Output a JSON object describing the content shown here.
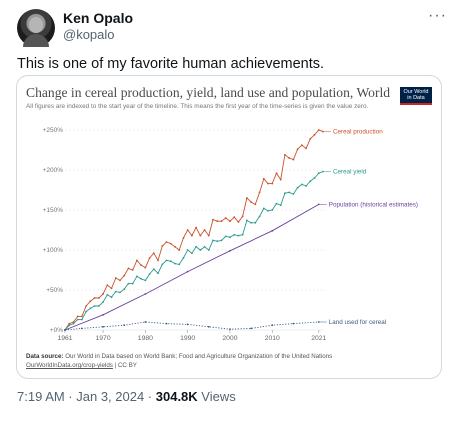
{
  "author": {
    "name": "Ken Opalo",
    "handle": "@kopalo"
  },
  "tweet": {
    "text": "This is one of my favorite human achievements.",
    "more_glyph": "···"
  },
  "chart": {
    "title": "Change in cereal production, yield, land use and population, World",
    "subtitle": "All figures are indexed to the start year of the timeline. This means the first year of the time-series is given the value zero.",
    "logo": {
      "line1": "Our World",
      "line2": "in Data"
    },
    "data_source_label": "Data source:",
    "data_source_text": "Our World in Data based on World Bank; Food and Agriculture Organization of the United Nations",
    "link_text": "OurWorldInData.org/crop-yields",
    "license_text": "| CC BY"
  },
  "chart_data": {
    "type": "line",
    "title": "Change in cereal production, yield, land use and population, World",
    "x_ticks": [
      "1961",
      "1970",
      "1980",
      "1990",
      "2000",
      "2010",
      "2021"
    ],
    "y_ticks": [
      "+0%",
      "+50%",
      "+100%",
      "+150%",
      "+200%",
      "+250%"
    ],
    "xlim": [
      1961,
      2022
    ],
    "ylim": [
      0,
      250
    ],
    "colors": {
      "production": "#c9522b",
      "yield": "#2e9a8f",
      "population": "#6b3fa0",
      "land": "#3c5a80"
    },
    "series": [
      {
        "name": "Cereal production",
        "key": "production",
        "x": [
          1961,
          1962,
          1963,
          1964,
          1965,
          1966,
          1967,
          1968,
          1969,
          1970,
          1971,
          1972,
          1973,
          1974,
          1975,
          1976,
          1977,
          1978,
          1979,
          1980,
          1981,
          1982,
          1983,
          1984,
          1985,
          1986,
          1987,
          1988,
          1989,
          1990,
          1991,
          1992,
          1993,
          1994,
          1995,
          1996,
          1997,
          1998,
          1999,
          2000,
          2001,
          2002,
          2003,
          2004,
          2005,
          2006,
          2007,
          2008,
          2009,
          2010,
          2011,
          2012,
          2013,
          2014,
          2015,
          2016,
          2017,
          2018,
          2019,
          2020,
          2021,
          2022
        ],
        "y": [
          0,
          8,
          10,
          17,
          17,
          30,
          36,
          40,
          40,
          45,
          56,
          52,
          65,
          62,
          68,
          77,
          75,
          87,
          81,
          78,
          90,
          96,
          87,
          105,
          110,
          108,
          104,
          100,
          115,
          125,
          118,
          128,
          118,
          125,
          118,
          138,
          136,
          136,
          140,
          136,
          141,
          135,
          142,
          165,
          160,
          157,
          172,
          189,
          183,
          183,
          196,
          188,
          219,
          215,
          213,
          226,
          231,
          227,
          239,
          244,
          250,
          248
        ]
      },
      {
        "name": "Cereal yield",
        "key": "yield",
        "x": [
          1961,
          1962,
          1963,
          1964,
          1965,
          1966,
          1967,
          1968,
          1969,
          1970,
          1971,
          1972,
          1973,
          1974,
          1975,
          1976,
          1977,
          1978,
          1979,
          1980,
          1981,
          1982,
          1983,
          1984,
          1985,
          1986,
          1987,
          1988,
          1989,
          1990,
          1991,
          1992,
          1993,
          1994,
          1995,
          1996,
          1997,
          1998,
          1999,
          2000,
          2001,
          2002,
          2003,
          2004,
          2005,
          2006,
          2007,
          2008,
          2009,
          2010,
          2011,
          2012,
          2013,
          2014,
          2015,
          2016,
          2017,
          2018,
          2019,
          2020,
          2021,
          2022
        ],
        "y": [
          0,
          6,
          8,
          13,
          13,
          23,
          27,
          30,
          30,
          35,
          44,
          41,
          48,
          47,
          51,
          58,
          58,
          67,
          64,
          62,
          70,
          76,
          71,
          82,
          87,
          86,
          83,
          82,
          90,
          100,
          96,
          104,
          100,
          104,
          100,
          112,
          111,
          112,
          117,
          116,
          119,
          118,
          119,
          137,
          134,
          134,
          142,
          152,
          149,
          150,
          158,
          156,
          171,
          172,
          170,
          178,
          182,
          180,
          186,
          190,
          196,
          198
        ]
      },
      {
        "name": "Population (historical estimates)",
        "key": "population",
        "x": [
          1961,
          1970,
          1980,
          1990,
          2000,
          2010,
          2021
        ],
        "y": [
          0,
          19,
          45,
          73,
          99,
          124,
          157
        ]
      },
      {
        "name": "Land used for cereal",
        "key": "land",
        "x": [
          1961,
          1965,
          1970,
          1975,
          1980,
          1985,
          1990,
          1995,
          2000,
          2005,
          2010,
          2015,
          2021
        ],
        "y": [
          0,
          2,
          4,
          6,
          10,
          8,
          7,
          4,
          1,
          2,
          6,
          8,
          10
        ]
      }
    ]
  },
  "meta": {
    "time": "7:19 AM · Jan 3, 2024 · ",
    "views_count": "304.8K",
    "views_label": " Views"
  }
}
